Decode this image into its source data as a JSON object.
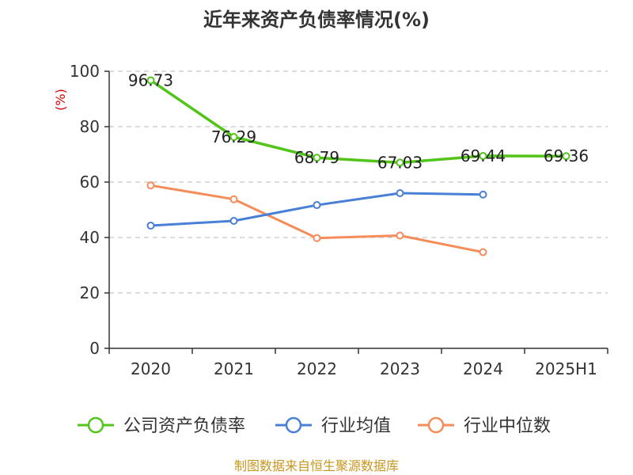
{
  "chart_data": {
    "type": "line",
    "title": "近年来资产负债率情况(%)",
    "ylabel": "(%)",
    "categories": [
      "2020",
      "2021",
      "2022",
      "2023",
      "2024",
      "2025H1"
    ],
    "yticks": [
      "0",
      "20",
      "40",
      "60",
      "80",
      "100"
    ],
    "ylim": [
      0,
      100
    ],
    "grid": true,
    "legend_position": "bottom",
    "series": [
      {
        "name": "公司资产负债率",
        "color": "#52c41a",
        "values": [
          96.73,
          76.29,
          68.79,
          67.03,
          69.44,
          69.36
        ],
        "labels": [
          "96.73",
          "76.29",
          "68.79",
          "67.03",
          "69.44",
          "69.36"
        ]
      },
      {
        "name": "行业均值",
        "color": "#4a7fd6",
        "values": [
          44.3,
          46.0,
          51.7,
          56.0,
          55.5,
          null
        ]
      },
      {
        "name": "行业中位数",
        "color": "#f58c5a",
        "values": [
          58.8,
          53.8,
          39.8,
          40.7,
          34.7,
          null
        ]
      }
    ],
    "source": "制图数据来自恒生聚源数据库"
  }
}
